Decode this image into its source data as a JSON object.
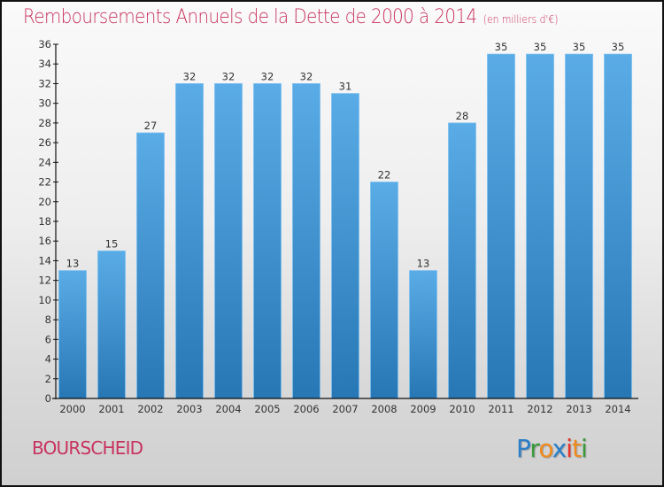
{
  "chart_data": {
    "type": "bar",
    "title": "Remboursements Annuels de la Dette de 2000 à 2014",
    "subtitle": "(en milliers d'€)",
    "xlabel": "",
    "ylabel": "",
    "categories": [
      "2000",
      "2001",
      "2002",
      "2003",
      "2004",
      "2005",
      "2006",
      "2007",
      "2008",
      "2009",
      "2010",
      "2011",
      "2012",
      "2013",
      "2014"
    ],
    "values": [
      13,
      15,
      27,
      32,
      32,
      32,
      32,
      31,
      22,
      13,
      28,
      35,
      35,
      35,
      35
    ],
    "ylim": [
      0,
      36
    ],
    "yticks": [
      0,
      2,
      4,
      6,
      8,
      10,
      12,
      14,
      16,
      18,
      20,
      22,
      24,
      26,
      28,
      30,
      32,
      34,
      36
    ],
    "grid": false,
    "legend": "none",
    "bar_color_top": "#5aace6",
    "bar_color_bottom": "#2777b5"
  },
  "footer": {
    "commune": "BOURSCHEID",
    "logo_letters": [
      {
        "ch": "P",
        "color": "#2b7fc8"
      },
      {
        "ch": "r",
        "color": "#3a9a3a"
      },
      {
        "ch": "o",
        "color": "#f08a1c"
      },
      {
        "ch": "x",
        "color": "#2b7fc8"
      },
      {
        "ch": "i",
        "color": "#e8312a"
      },
      {
        "ch": "t",
        "color": "#f08a1c"
      },
      {
        "ch": "i",
        "color": "#3a9a3a"
      }
    ]
  },
  "colors": {
    "title": "#c8325e"
  }
}
